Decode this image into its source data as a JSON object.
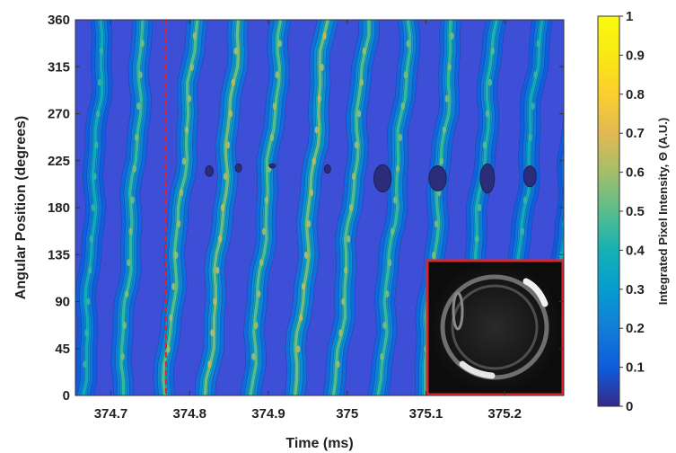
{
  "chart_data": {
    "type": "heatmap",
    "title": "",
    "xlabel": "Time (ms)",
    "ylabel": "Angular Position (degrees)",
    "xlim": [
      374.655,
      375.275
    ],
    "ylim": [
      0,
      360
    ],
    "x_ticks": [
      374.7,
      374.8,
      374.9,
      375,
      375.1,
      375.2
    ],
    "x_tick_labels": [
      "374.7",
      "374.8",
      "374.9",
      "375",
      "375.1",
      "375.2"
    ],
    "y_ticks": [
      0,
      45,
      90,
      135,
      180,
      225,
      270,
      315,
      360
    ],
    "y_tick_labels": [
      "0",
      "45",
      "90",
      "135",
      "180",
      "225",
      "270",
      "315",
      "360"
    ],
    "colorbar": {
      "label": "Integrated Pixel Intensity, Θ (A.U.)",
      "range": [
        0,
        1
      ],
      "ticks": [
        0,
        0.1,
        0.2,
        0.3,
        0.4,
        0.5,
        0.6,
        0.7,
        0.8,
        0.9,
        1
      ],
      "tick_labels": [
        "0",
        "0.1",
        "0.2",
        "0.3",
        "0.4",
        "0.5",
        "0.6",
        "0.7",
        "0.8",
        "0.9",
        "1"
      ],
      "colormap": "parula"
    },
    "bands": [
      {
        "t_at_0": 374.665,
        "t_at_360": 374.69,
        "peak": 0.45
      },
      {
        "t_at_0": 374.712,
        "t_at_360": 374.742,
        "peak": 0.55
      },
      {
        "t_at_0": 374.768,
        "t_at_360": 374.808,
        "peak": 0.6
      },
      {
        "t_at_0": 374.822,
        "t_at_360": 374.862,
        "peak": 0.65
      },
      {
        "t_at_0": 374.877,
        "t_at_360": 374.917,
        "peak": 0.6
      },
      {
        "t_at_0": 374.933,
        "t_at_360": 374.973,
        "peak": 0.65
      },
      {
        "t_at_0": 374.985,
        "t_at_360": 375.025,
        "peak": 0.6
      },
      {
        "t_at_0": 375.04,
        "t_at_360": 375.08,
        "peak": 0.55
      },
      {
        "t_at_0": 375.095,
        "t_at_360": 375.135,
        "peak": 0.55
      },
      {
        "t_at_0": 375.148,
        "t_at_360": 375.188,
        "peak": 0.5
      },
      {
        "t_at_0": 375.205,
        "t_at_360": 375.245,
        "peak": 0.45
      },
      {
        "t_at_0": 375.255,
        "t_at_360": 375.3,
        "peak": 0.4
      }
    ],
    "dark_spots": [
      {
        "t": 374.825,
        "angle": 215,
        "rt": 0.005,
        "ra": 5
      },
      {
        "t": 374.862,
        "angle": 218,
        "rt": 0.004,
        "ra": 4
      },
      {
        "t": 374.905,
        "angle": 220,
        "rt": 0.004,
        "ra": 2
      },
      {
        "t": 374.975,
        "angle": 217,
        "rt": 0.004,
        "ra": 4
      },
      {
        "t": 375.045,
        "angle": 208,
        "rt": 0.011,
        "ra": 13
      },
      {
        "t": 375.115,
        "angle": 208,
        "rt": 0.011,
        "ra": 12
      },
      {
        "t": 375.178,
        "angle": 208,
        "rt": 0.009,
        "ra": 14
      },
      {
        "t": 375.232,
        "angle": 210,
        "rt": 0.008,
        "ra": 10
      }
    ],
    "reference_line": {
      "x": 374.77,
      "color": "#e0242a",
      "style": "dashed"
    },
    "inset": {
      "description_icon": "droplet-image-inset",
      "border_color": "#e0242a"
    }
  }
}
